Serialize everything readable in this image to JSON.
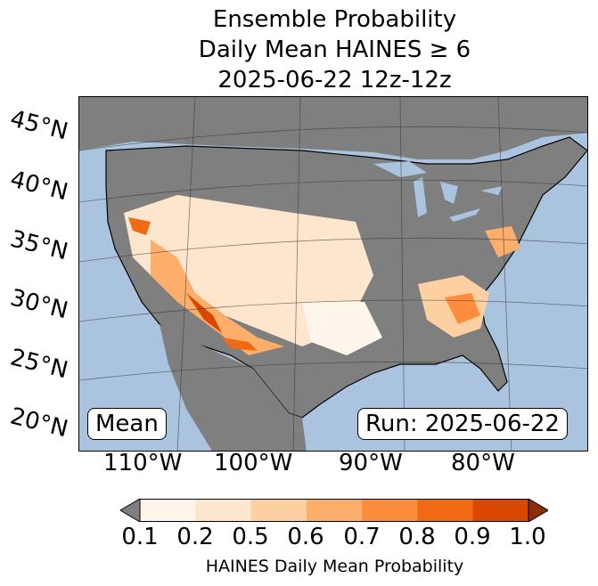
{
  "title": {
    "line1": "Ensemble Probability",
    "line2": "Daily Mean HAINES ≥ 6",
    "line3": "2025-06-22 12z-12z"
  },
  "map": {
    "region": "CONUS",
    "ocean_color": "#aac4df",
    "land_color": "#7f7f7f",
    "lat_labels": [
      "45°N",
      "40°N",
      "35°N",
      "30°N",
      "25°N",
      "20°N"
    ],
    "lon_labels": [
      "110°W",
      "100°W",
      "90°W",
      "80°W"
    ]
  },
  "boxes": {
    "mean": "Mean",
    "run": "Run: 2025-06-22"
  },
  "colorbar": {
    "ticks": [
      "0.1",
      "0.2",
      "0.5",
      "0.6",
      "0.7",
      "0.8",
      "0.9",
      "1.0"
    ],
    "colors": [
      "#fff5eb",
      "#fee6ce",
      "#fdd0a2",
      "#fdae6b",
      "#fd8d3c",
      "#f16913",
      "#d94801",
      "#8c2d04"
    ],
    "under_color": "#7f7f7f",
    "label": "HAINES Daily Mean Probability"
  }
}
